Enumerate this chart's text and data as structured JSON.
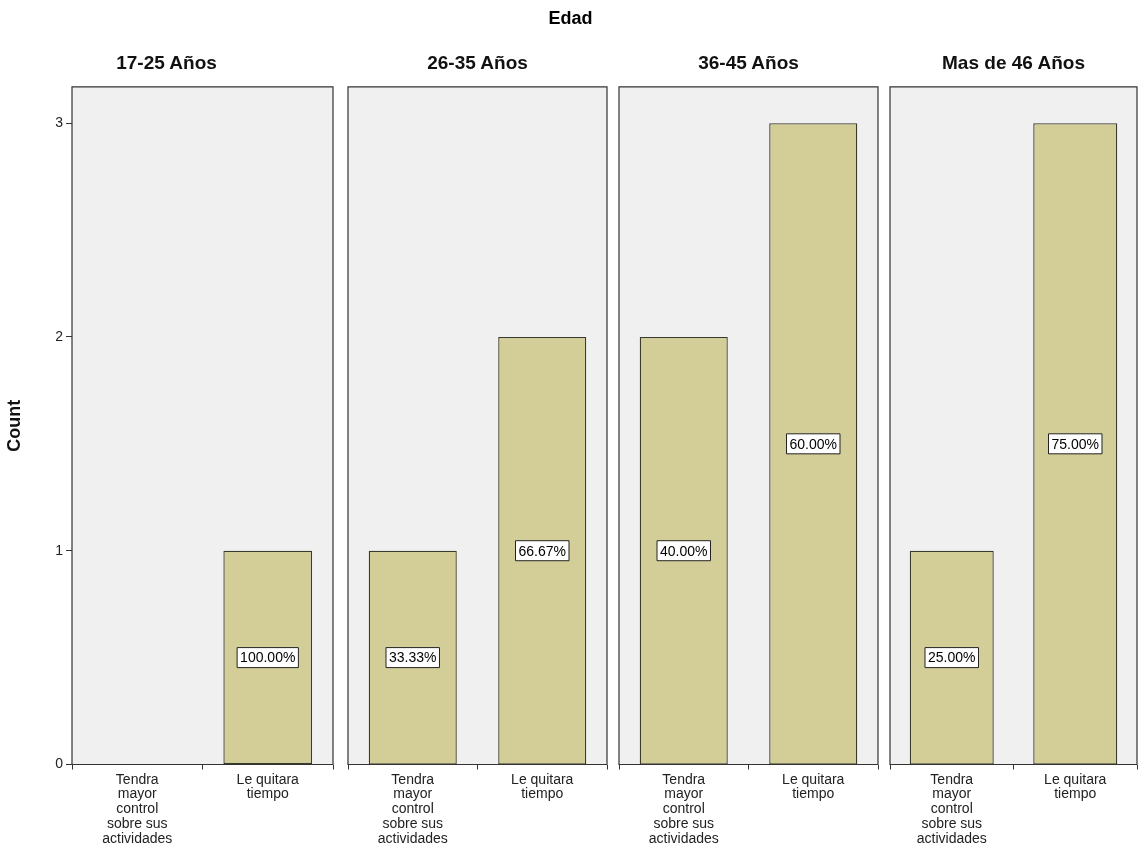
{
  "chart_data": [
    {
      "type": "bar",
      "title": "17-25 Años",
      "ylabel": "Count",
      "annotations": [
        "Edad",
        "100.00%"
      ],
      "categories": [
        "Tendra mayor control sobre sus actividades",
        "Le quitara tiempo"
      ],
      "values": [
        0,
        1
      ],
      "color": "#d3ce97",
      "ylim": [
        0,
        3.17
      ],
      "yticks": [
        0,
        1,
        2,
        3
      ],
      "grid": false,
      "legend": false
    },
    {
      "type": "bar",
      "title": "26-35 Años",
      "annotations": [
        "33.33%",
        "66.67%"
      ],
      "categories": [
        "Tendra mayor control sobre sus actividades",
        "Le quitara tiempo"
      ],
      "values": [
        1,
        2
      ],
      "color": "#d3ce97",
      "ylim": [
        0,
        3.17
      ],
      "tick_labels": "x",
      "grid": false,
      "legend": false
    },
    {
      "type": "bar",
      "title": "36-45 Años",
      "annotations": [
        "40.00%",
        "60.00%"
      ],
      "categories": [
        "Tendra mayor control sobre sus actividades",
        "Le quitara tiempo"
      ],
      "values": [
        2,
        3
      ],
      "color": "#d3ce97",
      "ylim": [
        0,
        3.17
      ],
      "tick_labels": "x",
      "grid": false,
      "legend": false
    },
    {
      "type": "bar",
      "title": "Mas de 46 Años",
      "annotations": [
        "25.00%",
        "75.00%"
      ],
      "categories": [
        "Tendra mayor control sobre sus actividades",
        "Le quitara tiempo"
      ],
      "values": [
        1,
        3
      ],
      "color": "#d3ce97",
      "ylim": [
        0,
        3.17
      ],
      "tick_labels": "x",
      "grid": false,
      "legend": false
    }
  ]
}
